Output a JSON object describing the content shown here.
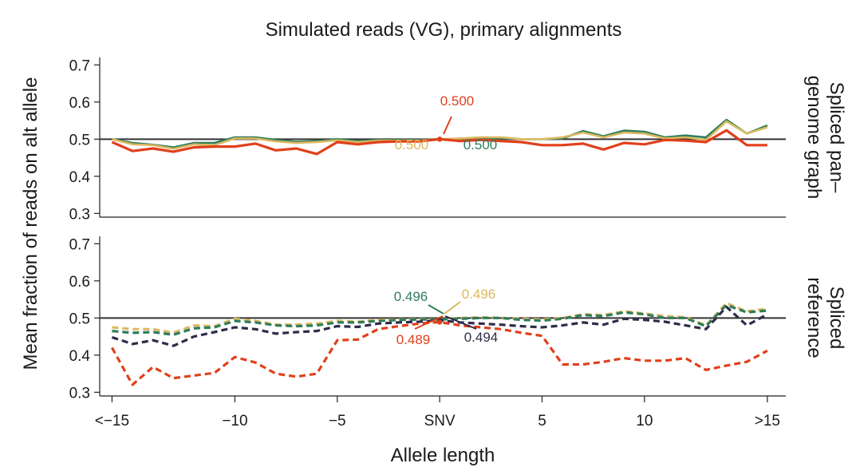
{
  "chart_data": {
    "type": "line",
    "title": "Simulated reads (VG), primary alignments",
    "xlabel": "Allele length",
    "ylabel": "Mean fraction of reads on alt allele",
    "x_positions": [
      -16,
      -15,
      -14,
      -13,
      -12,
      -11,
      -10,
      -9,
      -8,
      -7,
      -6,
      -5,
      -4,
      -3,
      -2,
      -1,
      0,
      1,
      2,
      3,
      4,
      5,
      6,
      7,
      8,
      9,
      10,
      11,
      12,
      13,
      14,
      15,
      16
    ],
    "xlim": [
      -16.6,
      16.9
    ],
    "x_ticks": [
      {
        "x": -16,
        "label": "<−15"
      },
      {
        "x": -10,
        "label": "−10"
      },
      {
        "x": -5,
        "label": "−5"
      },
      {
        "x": 0,
        "label": "SNV"
      },
      {
        "x": 5,
        "label": "5"
      },
      {
        "x": 10,
        "label": "10"
      },
      {
        "x": 16,
        "label": ">15"
      }
    ],
    "y_ticks": [
      0.3,
      0.4,
      0.5,
      0.6,
      0.7
    ],
    "ylim": [
      0.29,
      0.72
    ],
    "reference_line": 0.5,
    "grid": false,
    "panels": [
      {
        "facet_label_lines": [
          "Spliced pan–",
          "genome graph"
        ],
        "series": [
          {
            "color": "#2e7d5b",
            "dash": "solid",
            "values": [
              0.5,
              0.49,
              0.485,
              0.478,
              0.49,
              0.49,
              0.505,
              0.505,
              0.498,
              0.493,
              0.495,
              0.5,
              0.495,
              0.498,
              0.498,
              0.498,
              0.5,
              0.5,
              0.5,
              0.502,
              0.5,
              0.5,
              0.502,
              0.522,
              0.508,
              0.523,
              0.52,
              0.505,
              0.51,
              0.505,
              0.552,
              0.515,
              0.537
            ]
          },
          {
            "color": "#dcb860",
            "dash": "solid",
            "values": [
              0.5,
              0.486,
              0.484,
              0.474,
              0.486,
              0.484,
              0.502,
              0.502,
              0.494,
              0.49,
              0.492,
              0.497,
              0.492,
              0.496,
              0.496,
              0.496,
              0.5,
              0.502,
              0.505,
              0.505,
              0.5,
              0.5,
              0.505,
              0.518,
              0.505,
              0.518,
              0.515,
              0.502,
              0.505,
              0.498,
              0.548,
              0.515,
              0.532
            ]
          },
          {
            "color": "#e0401c",
            "dash": "solid",
            "values": [
              0.492,
              0.468,
              0.475,
              0.466,
              0.478,
              0.48,
              0.48,
              0.488,
              0.47,
              0.475,
              0.46,
              0.492,
              0.486,
              0.492,
              0.494,
              0.494,
              0.5,
              0.495,
              0.498,
              0.495,
              0.492,
              0.484,
              0.484,
              0.488,
              0.472,
              0.49,
              0.486,
              0.498,
              0.496,
              0.492,
              0.524,
              0.484,
              0.484
            ]
          }
        ],
        "annotations": [
          {
            "text": "0.500",
            "color": "#e0401c"
          },
          {
            "text": "0.500",
            "color": "#dcb860"
          },
          {
            "text": "0.500",
            "color": "#2e7d5b"
          }
        ]
      },
      {
        "facet_label_lines": [
          "Spliced",
          "reference"
        ],
        "series": [
          {
            "color": "#dcb860",
            "dash": "dashed",
            "values": [
              0.475,
              0.47,
              0.47,
              0.46,
              0.48,
              0.478,
              0.498,
              0.492,
              0.482,
              0.482,
              0.485,
              0.492,
              0.49,
              0.495,
              0.496,
              0.497,
              0.496,
              0.5,
              0.502,
              0.5,
              0.498,
              0.496,
              0.5,
              0.51,
              0.508,
              0.518,
              0.512,
              0.505,
              0.502,
              0.48,
              0.54,
              0.518,
              0.525
            ]
          },
          {
            "color": "#2e7d5b",
            "dash": "dashed",
            "values": [
              0.465,
              0.46,
              0.462,
              0.455,
              0.472,
              0.475,
              0.492,
              0.488,
              0.48,
              0.478,
              0.48,
              0.488,
              0.488,
              0.492,
              0.495,
              0.496,
              0.496,
              0.498,
              0.5,
              0.5,
              0.495,
              0.493,
              0.498,
              0.508,
              0.505,
              0.515,
              0.51,
              0.5,
              0.5,
              0.478,
              0.535,
              0.515,
              0.52
            ]
          },
          {
            "color": "#2e2c4a",
            "dash": "dashed",
            "values": [
              0.448,
              0.43,
              0.44,
              0.425,
              0.45,
              0.462,
              0.475,
              0.47,
              0.458,
              0.462,
              0.465,
              0.478,
              0.476,
              0.485,
              0.488,
              0.49,
              0.494,
              0.488,
              0.485,
              0.482,
              0.478,
              0.475,
              0.48,
              0.488,
              0.482,
              0.498,
              0.495,
              0.49,
              0.48,
              0.47,
              0.53,
              0.48,
              0.51
            ]
          },
          {
            "color": "#e0401c",
            "dash": "dashed",
            "values": [
              0.42,
              0.32,
              0.368,
              0.338,
              0.345,
              0.352,
              0.395,
              0.38,
              0.35,
              0.342,
              0.35,
              0.44,
              0.442,
              0.47,
              0.478,
              0.485,
              0.489,
              0.48,
              0.475,
              0.47,
              0.46,
              0.452,
              0.375,
              0.375,
              0.382,
              0.392,
              0.385,
              0.385,
              0.392,
              0.36,
              0.372,
              0.382,
              0.412
            ]
          }
        ],
        "annotations": [
          {
            "text": "0.496",
            "color": "#2e7d5b"
          },
          {
            "text": "0.496",
            "color": "#dcb860"
          },
          {
            "text": "0.489",
            "color": "#e0401c"
          },
          {
            "text": "0.494",
            "color": "#2e2c4a"
          }
        ]
      }
    ]
  }
}
